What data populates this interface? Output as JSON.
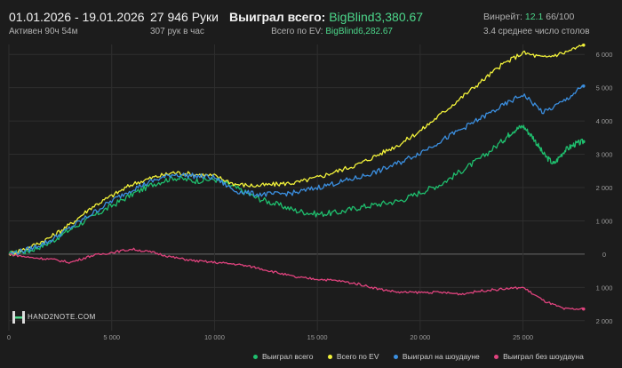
{
  "header": {
    "date_range": "01.01.2026 - 19.01.2026",
    "active_time": "Активен 90ч 54м",
    "hands": "27 946 Руки",
    "per_hour": "307 рук в час",
    "won_label": "Выиграл всего:",
    "won_value": "BigBlind3,380.67",
    "ev_label": "Всего по EV:",
    "ev_value": "BigBlind6,282.67",
    "winrate_label": "Винрейт:",
    "winrate_value": "12.1",
    "winrate_suffix": "66/100",
    "avg_tables": "3.4 среднее число столов"
  },
  "logo": {
    "text": "HAND2NOTE.COM"
  },
  "colors": {
    "won": "#1fbf6e",
    "ev": "#f2f23a",
    "showdown": "#3b8fe0",
    "nonshowdown": "#e0437e",
    "grid": "#2e2e2e",
    "zero": "#6a6a6a"
  },
  "chart_data": {
    "type": "line",
    "x_ticks": [
      0,
      5000,
      10000,
      15000,
      20000,
      25000
    ],
    "x_tick_labels": [
      "0",
      "5 000",
      "10 000",
      "15 000",
      "20 000",
      "25 000"
    ],
    "y_ticks": [
      6000,
      5000,
      4000,
      3000,
      2000,
      1000,
      0,
      -1000,
      -2000
    ],
    "y_tick_labels": [
      "6 000",
      "5 000",
      "4 000",
      "3 000",
      "2 000",
      "1 000",
      "0",
      "1 000",
      "2 000"
    ],
    "xlim": [
      0,
      28000
    ],
    "ylim": [
      -2300,
      6300
    ],
    "series": [
      {
        "name": "Выиграл всего",
        "color_key": "won",
        "x": [
          0,
          1000,
          2000,
          3000,
          4000,
          5000,
          6000,
          7000,
          8000,
          9000,
          10000,
          11000,
          12000,
          13000,
          14000,
          15000,
          16000,
          17000,
          18000,
          19000,
          20000,
          21000,
          22000,
          23000,
          24000,
          24500,
          25000,
          25500,
          26000,
          26500,
          27000,
          27500,
          27946
        ],
        "values": [
          0,
          100,
          350,
          750,
          1100,
          1450,
          1800,
          2100,
          2300,
          2200,
          2250,
          2000,
          1700,
          1500,
          1300,
          1200,
          1250,
          1400,
          1500,
          1600,
          1850,
          2100,
          2500,
          2900,
          3400,
          3700,
          3850,
          3500,
          3000,
          2700,
          3100,
          3300,
          3380
        ]
      },
      {
        "name": "Всего по EV",
        "color_key": "ev",
        "x": [
          0,
          1000,
          2000,
          3000,
          4000,
          5000,
          6000,
          7000,
          8000,
          9000,
          10000,
          11000,
          12000,
          13000,
          14000,
          15000,
          16000,
          17000,
          18000,
          19000,
          20000,
          21000,
          22000,
          23000,
          24000,
          25000,
          26000,
          27000,
          27946
        ],
        "values": [
          0,
          200,
          500,
          900,
          1400,
          1750,
          2100,
          2300,
          2450,
          2400,
          2350,
          2100,
          2050,
          2100,
          2150,
          2300,
          2500,
          2700,
          3000,
          3300,
          3700,
          4200,
          4700,
          5200,
          5700,
          6050,
          5900,
          6050,
          6280
        ]
      },
      {
        "name": "Выиграл на шоудауне",
        "color_key": "showdown",
        "x": [
          0,
          1000,
          2000,
          3000,
          4000,
          5000,
          6000,
          7000,
          8000,
          9000,
          10000,
          11000,
          12000,
          13000,
          14000,
          15000,
          16000,
          17000,
          18000,
          19000,
          20000,
          21000,
          22000,
          23000,
          24000,
          25000,
          26000,
          27000,
          27946
        ],
        "values": [
          0,
          150,
          400,
          800,
          1200,
          1600,
          1950,
          2200,
          2400,
          2350,
          2300,
          1900,
          1800,
          1800,
          1850,
          2000,
          2150,
          2300,
          2500,
          2750,
          3050,
          3400,
          3750,
          4100,
          4450,
          4800,
          4250,
          4600,
          5050
        ]
      },
      {
        "name": "Выиграл без шоудауна",
        "color_key": "nonshowdown",
        "x": [
          0,
          1000,
          2000,
          3000,
          4000,
          5000,
          6000,
          7000,
          8000,
          9000,
          10000,
          11000,
          12000,
          13000,
          14000,
          15000,
          16000,
          17000,
          18000,
          19000,
          20000,
          21000,
          22000,
          23000,
          24000,
          25000,
          26000,
          27000,
          27946
        ],
        "values": [
          0,
          -100,
          -150,
          -250,
          -50,
          50,
          150,
          50,
          -100,
          -200,
          -250,
          -300,
          -400,
          -550,
          -700,
          -750,
          -800,
          -900,
          -1050,
          -1150,
          -1150,
          -1150,
          -1200,
          -1100,
          -1050,
          -1000,
          -1400,
          -1650,
          -1650
        ]
      }
    ],
    "legend": [
      "Выиграл всего",
      "Всего по EV",
      "Выиграл на шоудауне",
      "Выиграл без шоудауна"
    ],
    "grid": true
  }
}
